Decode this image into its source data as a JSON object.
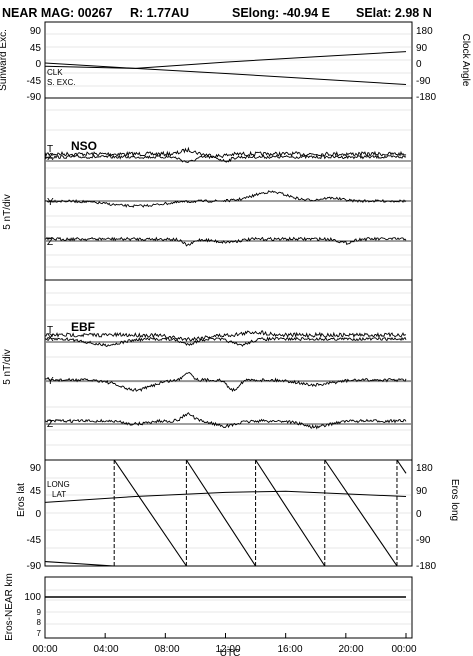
{
  "header": {
    "title": "NEAR MAG: 00267",
    "range": "R: 1.77AU",
    "selong": "SElong:  -40.94 E",
    "selat": "SElat:    2.98 N"
  },
  "chart_data": [
    {
      "type": "line",
      "name": "panel1",
      "ylabel": "Sunward Exc.",
      "y2label": "Clock Angle",
      "ylim": [
        -90,
        90
      ],
      "y2lim": [
        -180,
        180
      ],
      "yticks": [
        "90",
        "45",
        "0",
        "-45",
        "-90"
      ],
      "y2ticks": [
        "180",
        "90",
        "0",
        "-90",
        "-180"
      ],
      "annotations": [
        "CLK",
        "S. EXC."
      ],
      "series": [
        {
          "label": "CLK",
          "axis": "right",
          "x": [
            0,
            6,
            12,
            18,
            24
          ],
          "values": [
            -30,
            -40,
            -10,
            15,
            40
          ]
        },
        {
          "label": "S. EXC.",
          "axis": "left",
          "x": [
            0,
            6,
            12,
            18,
            24
          ],
          "values": [
            -7,
            -20,
            -32,
            -45,
            -58
          ]
        }
      ]
    },
    {
      "type": "line",
      "name": "panel2",
      "frame": "NSO",
      "ylabel": "5 nT/div",
      "components": [
        "T",
        "X",
        "Y",
        "Z"
      ]
    },
    {
      "type": "line",
      "name": "panel3",
      "frame": "EBF",
      "ylabel": "5 nT/div",
      "components": [
        "T",
        "X",
        "Y",
        "Z"
      ]
    },
    {
      "type": "line",
      "name": "panel4",
      "ylabel": "Eros lat",
      "y2label": "Eros long",
      "ylim": [
        -90,
        90
      ],
      "y2lim": [
        -180,
        180
      ],
      "yticks": [
        "90",
        "45",
        "0",
        "-45",
        "-90"
      ],
      "y2ticks": [
        "180",
        "90",
        "0",
        "-90",
        "-180"
      ],
      "annotations": [
        "LONG",
        "LAT"
      ],
      "series": [
        {
          "label": "LAT",
          "axis": "left",
          "x": [
            0,
            6,
            12,
            16,
            24
          ],
          "values": [
            18,
            28,
            35,
            37,
            28
          ]
        },
        {
          "label": "LONG",
          "axis": "right",
          "sawtooth_resets_hours": [
            4.6,
            9.4,
            14.0,
            18.6,
            23.4
          ],
          "low": -180,
          "high": 180
        }
      ]
    },
    {
      "type": "line",
      "name": "panel5",
      "ylabel": "Eros-NEAR km",
      "yticks": [
        "100",
        "9",
        "8",
        "7"
      ],
      "series": [
        {
          "x": [
            0,
            24
          ],
          "values": [
            100,
            100
          ]
        }
      ]
    }
  ],
  "xaxis": {
    "label": "UTC",
    "ticks": [
      "00:00",
      "04:00",
      "08:00",
      "12:00",
      "16:00",
      "20:00",
      "00:00"
    ],
    "lim": [
      0,
      24
    ]
  }
}
